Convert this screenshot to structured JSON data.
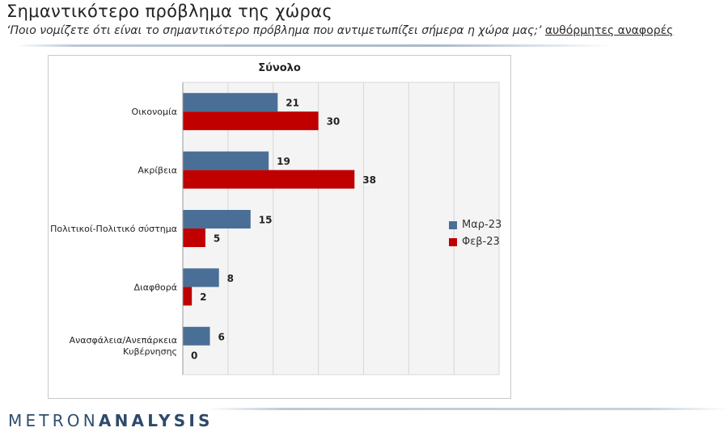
{
  "header": {
    "title": "Σημαντικότερο πρόβλημα της χώρας",
    "subtitle_main": "‘Ποιο νομίζετε ότι  είναι το σημαντικότερο πρόβλημα που αντιμετωπίζει σήμερα η χώρα μας;’",
    "subtitle_note": "αυθόρμητες αναφορές"
  },
  "footer": {
    "logo_part1": "METRON",
    "logo_part2": "ANALYSIS"
  },
  "chart_data": {
    "type": "bar",
    "orientation": "horizontal",
    "title": "Σύνολο",
    "categories": [
      "Οικονομία",
      "Ακρίβεια",
      "Πολιτικοί-Πολιτικό σύστημα",
      "Διαφθορά",
      "Ανασφάλεια/Ανεπάρκεια Κυβέρνησης"
    ],
    "series": [
      {
        "name": "Μαρ-23",
        "color": "#4a6f96",
        "values": [
          21,
          19,
          15,
          8,
          6
        ]
      },
      {
        "name": "Φεβ-23",
        "color": "#c00000",
        "values": [
          30,
          38,
          5,
          2,
          0
        ]
      }
    ],
    "xlim": [
      0,
      70
    ],
    "grid": true,
    "legend": "right"
  }
}
